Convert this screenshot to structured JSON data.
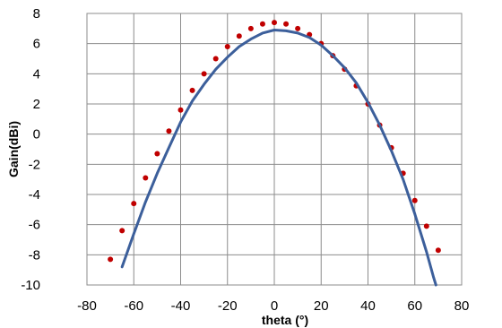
{
  "chart_data": {
    "type": "line",
    "title": "",
    "xlabel": "theta (°)",
    "ylabel": "Gain(dBi)",
    "xlim": [
      -80,
      80
    ],
    "ylim": [
      -10,
      8
    ],
    "x_ticks": [
      -80,
      -60,
      -40,
      -20,
      0,
      20,
      40,
      60,
      80
    ],
    "y_ticks": [
      -10,
      -8,
      -6,
      -4,
      -2,
      0,
      2,
      4,
      6,
      8
    ],
    "x_tick_labels": [
      "-80",
      "-60",
      "-40",
      "-20",
      "0",
      "20",
      "40",
      "60",
      "80"
    ],
    "y_tick_labels": [
      "-10",
      "-8",
      "-6",
      "-4",
      "-2",
      "0",
      "2",
      "4",
      "6",
      "8"
    ],
    "grid": true,
    "legend": "none",
    "series": [
      {
        "style": "dotted",
        "color": "#c00000",
        "points": [
          [
            -70,
            -8.3
          ],
          [
            -65,
            -6.4
          ],
          [
            -60,
            -4.6
          ],
          [
            -55,
            -2.9
          ],
          [
            -50,
            -1.3
          ],
          [
            -45,
            0.2
          ],
          [
            -40,
            1.6
          ],
          [
            -35,
            2.9
          ],
          [
            -30,
            4.0
          ],
          [
            -25,
            5.0
          ],
          [
            -20,
            5.8
          ],
          [
            -15,
            6.5
          ],
          [
            -10,
            7.0
          ],
          [
            -5,
            7.3
          ],
          [
            0,
            7.4
          ],
          [
            5,
            7.3
          ],
          [
            10,
            7.0
          ],
          [
            15,
            6.6
          ],
          [
            20,
            6.0
          ],
          [
            25,
            5.2
          ],
          [
            30,
            4.3
          ],
          [
            35,
            3.2
          ],
          [
            40,
            2.0
          ],
          [
            45,
            0.6
          ],
          [
            50,
            -0.9
          ],
          [
            55,
            -2.6
          ],
          [
            60,
            -4.4
          ],
          [
            65,
            -6.1
          ],
          [
            70,
            -7.7
          ]
        ]
      },
      {
        "style": "solid",
        "color": "#3c5f9b",
        "points": [
          [
            -65,
            -8.8
          ],
          [
            -60,
            -6.6
          ],
          [
            -55,
            -4.5
          ],
          [
            -50,
            -2.6
          ],
          [
            -45,
            -0.9
          ],
          [
            -40,
            0.8
          ],
          [
            -35,
            2.2
          ],
          [
            -30,
            3.3
          ],
          [
            -25,
            4.3
          ],
          [
            -20,
            5.1
          ],
          [
            -15,
            5.8
          ],
          [
            -10,
            6.3
          ],
          [
            -5,
            6.7
          ],
          [
            0,
            6.9
          ],
          [
            5,
            6.85
          ],
          [
            10,
            6.7
          ],
          [
            15,
            6.4
          ],
          [
            20,
            5.9
          ],
          [
            25,
            5.2
          ],
          [
            30,
            4.4
          ],
          [
            35,
            3.4
          ],
          [
            40,
            2.1
          ],
          [
            45,
            0.6
          ],
          [
            50,
            -1.1
          ],
          [
            55,
            -3.0
          ],
          [
            60,
            -5.3
          ],
          [
            65,
            -7.8
          ],
          [
            68,
            -9.5
          ],
          [
            69,
            -10
          ]
        ]
      }
    ]
  }
}
